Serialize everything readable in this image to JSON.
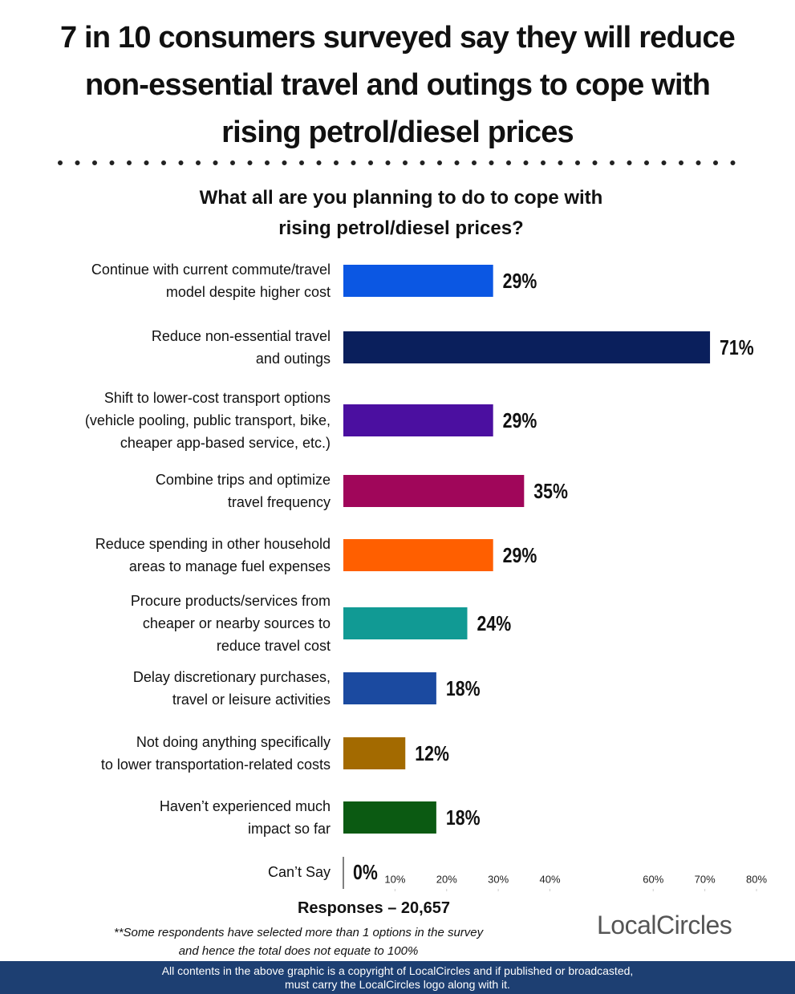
{
  "chart_data": {
    "type": "bar",
    "orientation": "horizontal",
    "title": "7 in 10 consumers surveyed say they will reduce\nnon-essential travel and outings to cope with\nrising  petrol/diesel prices",
    "subtitle": "What all are you planning to do to cope with\nrising petrol/diesel prices?",
    "categories": [
      "Continue with current commute/travel\nmodel despite higher cost",
      "Reduce non-essential travel\nand outings",
      "Shift to lower-cost transport options\n(vehicle pooling, public transport, bike,\ncheaper app-based service, etc.)",
      "Combine trips and optimize\ntravel frequency",
      "Reduce spending in other household\nareas to manage fuel expenses",
      "Procure products/services from\ncheaper or nearby sources to\nreduce travel cost",
      "Delay discretionary purchases,\ntravel or leisure activities",
      "Not doing anything specifically\nto lower transportation-related costs",
      "Haven’t experienced much\nimpact so far",
      "Can’t Say"
    ],
    "values": [
      29,
      71,
      29,
      35,
      29,
      24,
      18,
      12,
      18,
      0
    ],
    "value_labels": [
      "29%",
      "71%",
      "29%",
      "35%",
      "29%",
      "24%",
      "18%",
      "12%",
      "18%",
      "0%"
    ],
    "colors": [
      "#0b57e3",
      "#0a1f5c",
      "#4b0fa0",
      "#a0065a",
      "#ff5f00",
      "#119a94",
      "#1b4aa0",
      "#a36a00",
      "#0b5a12",
      "#999999"
    ],
    "xlim": [
      0,
      80
    ],
    "xticks": [
      {
        "value": 10,
        "label": "10%"
      },
      {
        "value": 20,
        "label": "20%"
      },
      {
        "value": 30,
        "label": "30%"
      },
      {
        "value": 40,
        "label": "40%"
      },
      {
        "value": 60,
        "label": "60%"
      },
      {
        "value": 70,
        "label": "70%"
      },
      {
        "value": 80,
        "label": "80%"
      }
    ],
    "responses": "Responses – 20,657",
    "footnote": "**Some respondents have selected more than 1 options in the survey\nand hence the total does not equate to 100%",
    "logo": "LocalCircles",
    "copyright": "All contents in the above graphic is a copyright of LocalCircles and if published or broadcasted,\nmust carry the LocalCircles logo along with it."
  }
}
